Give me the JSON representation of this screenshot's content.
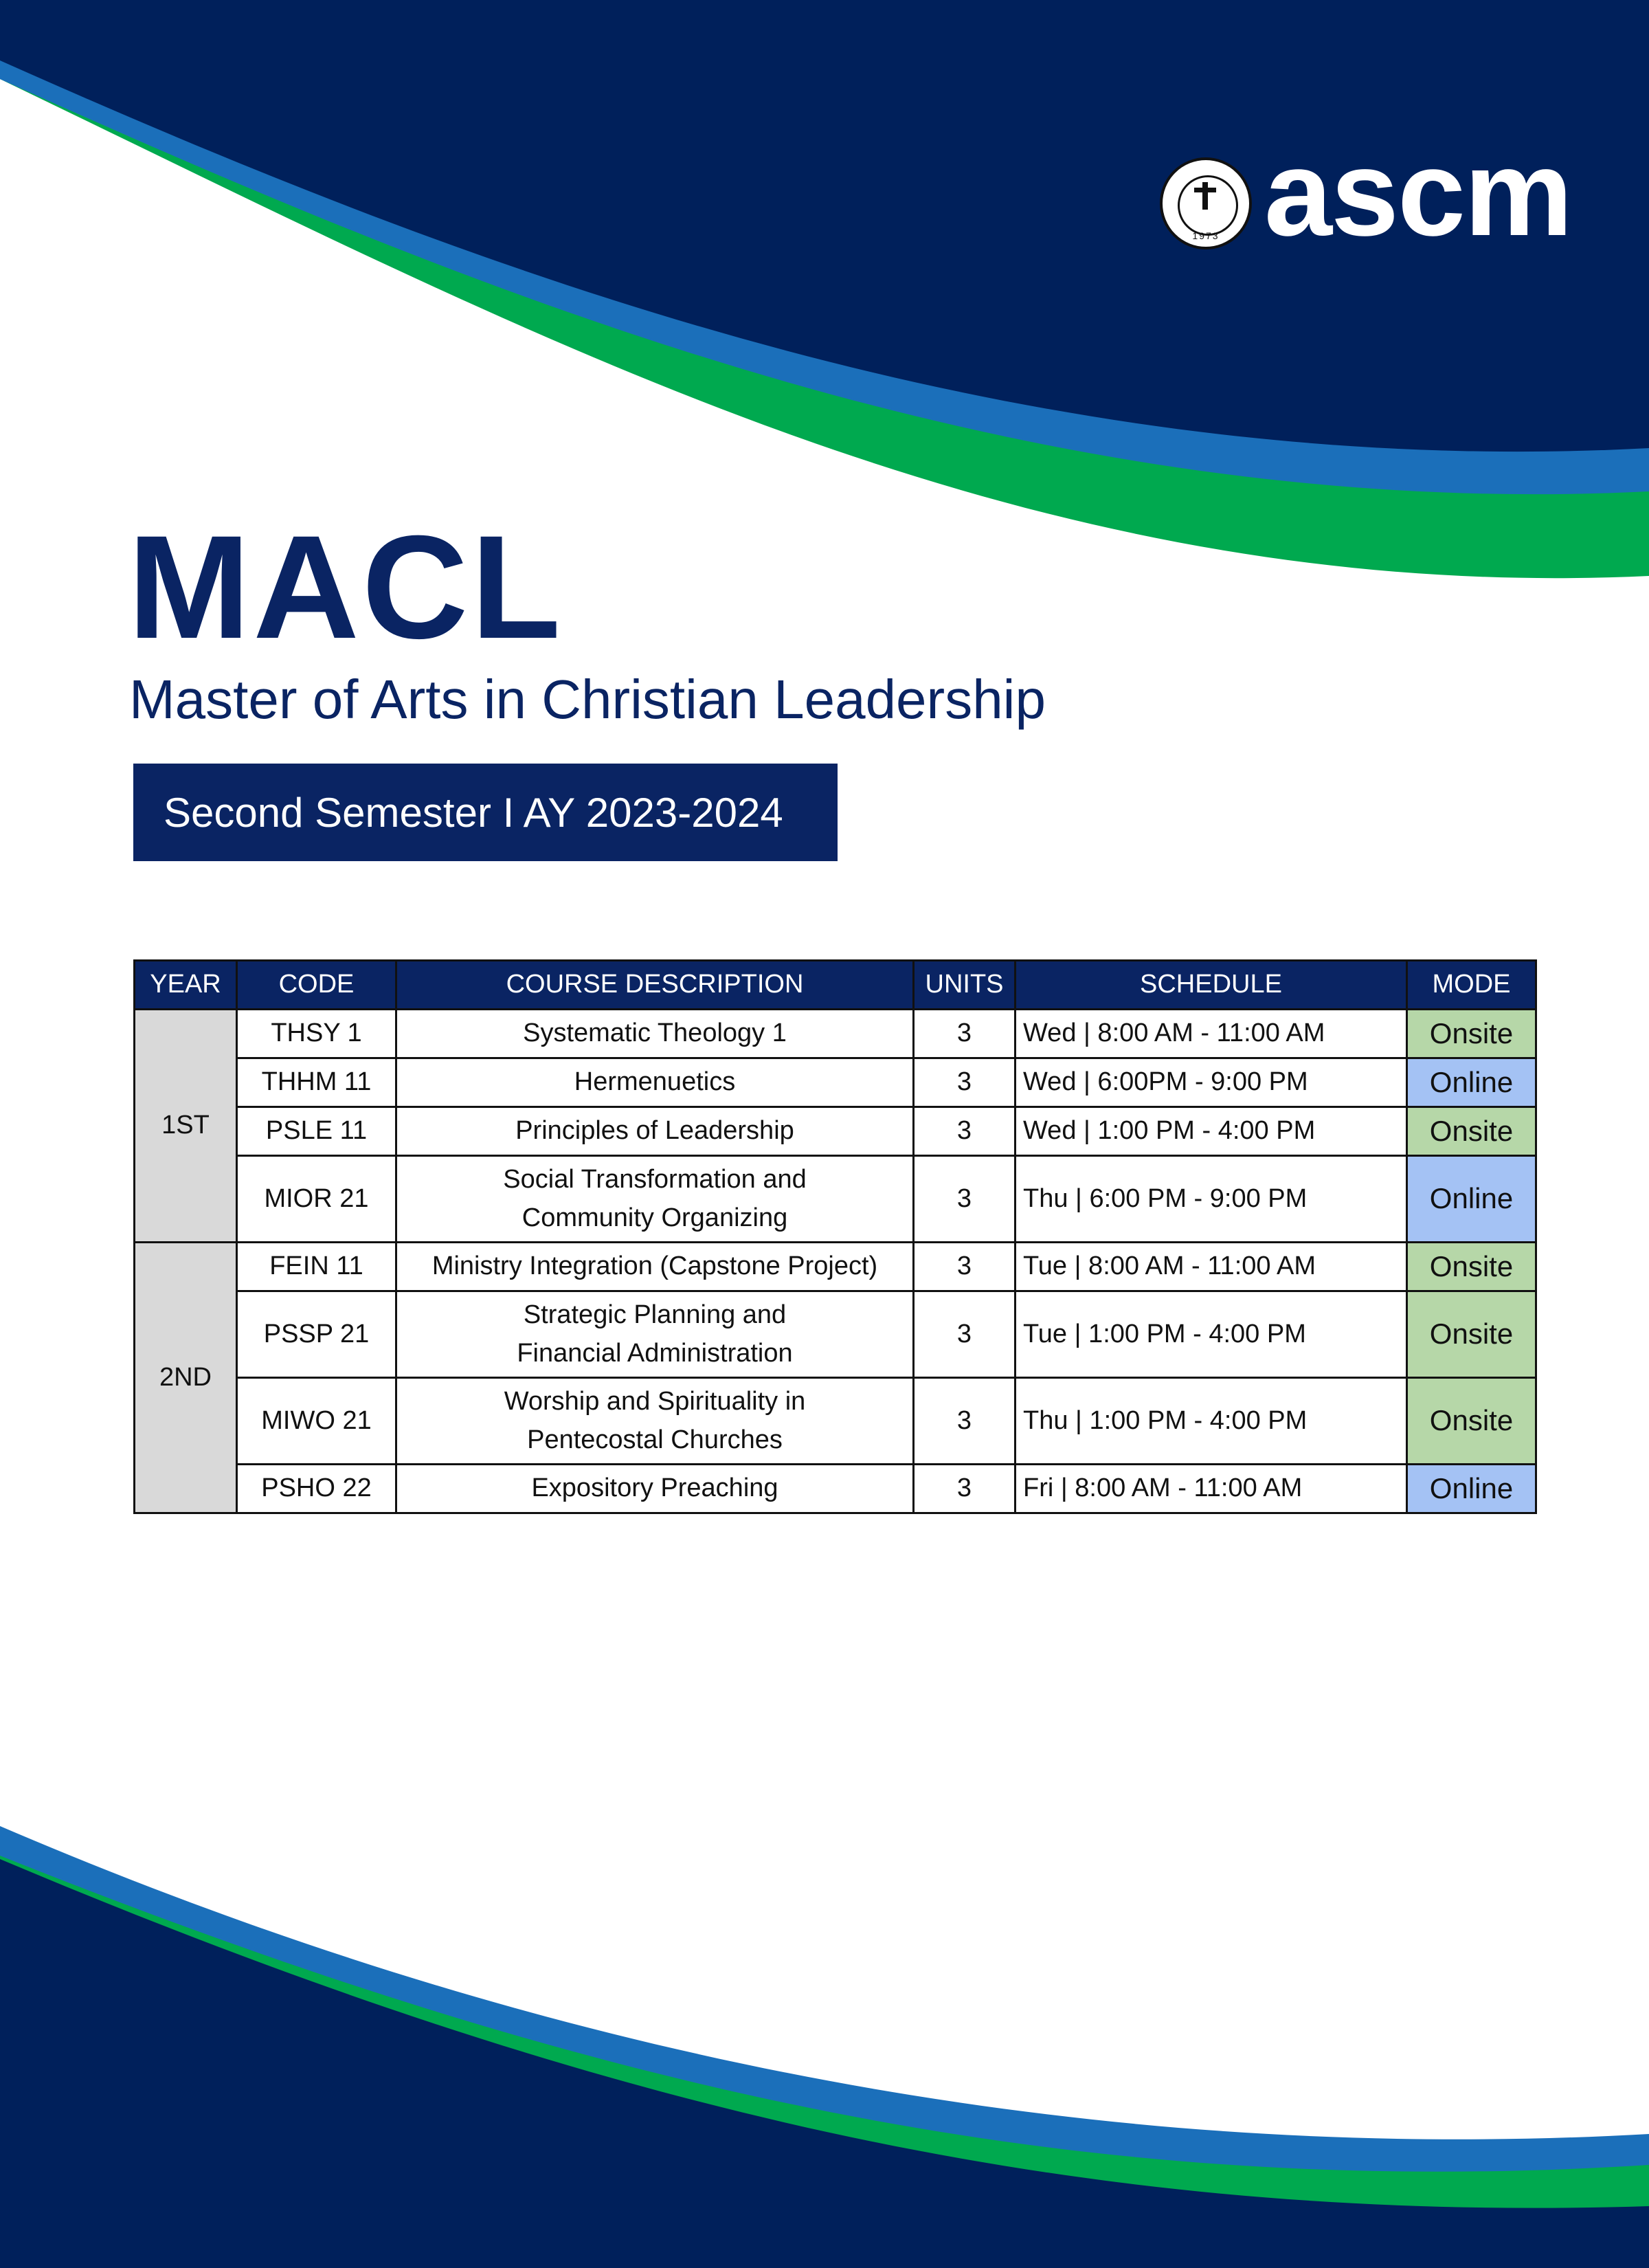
{
  "brand": {
    "logo_text": "ascm",
    "seal_text": "ASIAN SEMINARY OF CHRISTIAN MINISTRIES",
    "seal_year": "1973"
  },
  "colors": {
    "navy": "#0a2463",
    "blue": "#1b6fba",
    "green": "#00a94f",
    "onsite": "#b6d7a8",
    "online": "#a4c2f4",
    "year_cell": "#d9d9d9"
  },
  "header": {
    "title": "MACL",
    "subtitle": "Master of Arts in Christian Leadership",
    "semester": "Second Semester I AY 2023-2024"
  },
  "table": {
    "columns": [
      "YEAR",
      "CODE",
      "COURSE DESCRIPTION",
      "UNITS",
      "SCHEDULE",
      "MODE"
    ],
    "groups": [
      {
        "year": "1ST",
        "rows": [
          {
            "code": "THSY 1",
            "desc": [
              "Systematic Theology 1"
            ],
            "units": "3",
            "schedule": "Wed | 8:00 AM - 11:00 AM",
            "mode": "Onsite"
          },
          {
            "code": "THHM 11",
            "desc": [
              "Hermenuetics"
            ],
            "units": "3",
            "schedule": "Wed | 6:00PM - 9:00 PM",
            "mode": "Online"
          },
          {
            "code": "PSLE 11",
            "desc": [
              "Principles of Leadership"
            ],
            "units": "3",
            "schedule": "Wed | 1:00 PM - 4:00 PM",
            "mode": "Onsite"
          },
          {
            "code": "MIOR 21",
            "desc": [
              "Social Transformation and",
              "Community Organizing"
            ],
            "units": "3",
            "schedule": "Thu | 6:00 PM - 9:00 PM",
            "mode": "Online"
          }
        ]
      },
      {
        "year": "2ND",
        "rows": [
          {
            "code": "FEIN 11",
            "desc": [
              "Ministry Integration (Capstone Project)"
            ],
            "units": "3",
            "schedule": "Tue | 8:00 AM - 11:00 AM",
            "mode": "Onsite"
          },
          {
            "code": "PSSP 21",
            "desc": [
              "Strategic Planning and",
              "Financial Administration"
            ],
            "units": "3",
            "schedule": "Tue | 1:00 PM - 4:00 PM",
            "mode": "Onsite"
          },
          {
            "code": "MIWO 21",
            "desc": [
              "Worship and Spirituality in",
              "Pentecostal Churches"
            ],
            "units": "3",
            "schedule": "Thu | 1:00 PM - 4:00 PM",
            "mode": "Onsite"
          },
          {
            "code": "PSHO 22",
            "desc": [
              "Expository Preaching"
            ],
            "units": "3",
            "schedule": "Fri | 8:00 AM - 11:00 AM",
            "mode": "Online"
          }
        ]
      }
    ]
  }
}
